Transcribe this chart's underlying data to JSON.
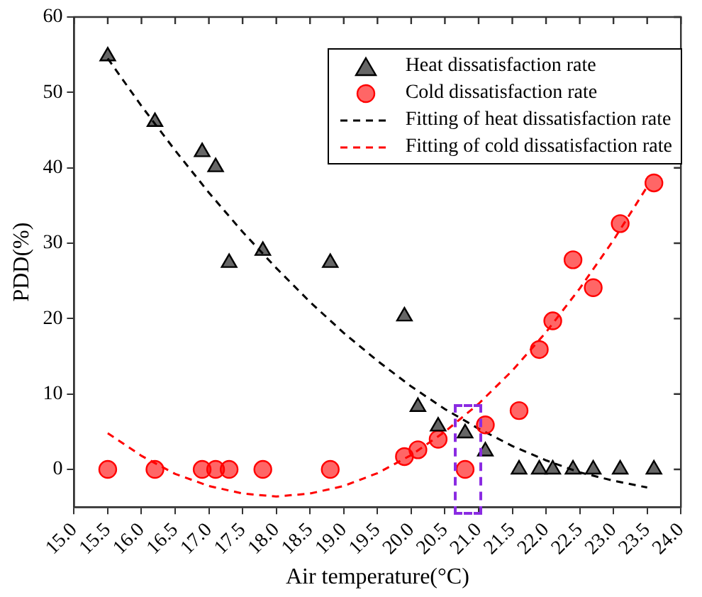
{
  "chart_data": {
    "type": "scatter",
    "xlabel": "Air temperature(°C)",
    "ylabel": "PDD(%)",
    "xlim": [
      15,
      24
    ],
    "ylim": [
      -5,
      60
    ],
    "xticks": [
      {
        "value": 15,
        "label": "15.0"
      },
      {
        "value": 15.5,
        "label": "15.5"
      },
      {
        "value": 16,
        "label": "16.0"
      },
      {
        "value": 16.5,
        "label": "16.5"
      },
      {
        "value": 17,
        "label": "17.0"
      },
      {
        "value": 17.5,
        "label": "17.5"
      },
      {
        "value": 18,
        "label": "18.0"
      },
      {
        "value": 18.5,
        "label": "18.5"
      },
      {
        "value": 19,
        "label": "19.0"
      },
      {
        "value": 19.5,
        "label": "19.5"
      },
      {
        "value": 20,
        "label": "20.0"
      },
      {
        "value": 20.5,
        "label": "20.5"
      },
      {
        "value": 21,
        "label": "21.0"
      },
      {
        "value": 21.5,
        "label": "21.5"
      },
      {
        "value": 22,
        "label": "22.0"
      },
      {
        "value": 22.5,
        "label": "22.5"
      },
      {
        "value": 23,
        "label": "23.0"
      },
      {
        "value": 23.5,
        "label": "23.5"
      },
      {
        "value": 24,
        "label": "24.0"
      }
    ],
    "yticks": [
      0,
      10,
      20,
      30,
      40,
      50,
      60
    ],
    "legend": "top right",
    "grid": false,
    "series": [
      {
        "name": "Heat dissatisfaction rate",
        "type": "scatter",
        "marker": "triangle",
        "color": "#000000",
        "x": [
          15.5,
          16.2,
          16.9,
          17.1,
          17.3,
          17.8,
          18.8,
          19.9,
          20.1,
          20.4,
          20.8,
          21.1,
          21.6,
          21.9,
          22.1,
          22.4,
          22.7,
          23.1,
          23.6
        ],
        "values": [
          54.8,
          46.1,
          42.1,
          40.1,
          27.4,
          29,
          27.4,
          20.3,
          8.3,
          5.7,
          4.8,
          2.4,
          0,
          0,
          0,
          0,
          0,
          0,
          0
        ]
      },
      {
        "name": "Cold dissatisfaction rate",
        "type": "scatter",
        "marker": "circle",
        "color": "#ff0000",
        "x": [
          15.5,
          16.2,
          16.9,
          17.1,
          17.3,
          17.8,
          18.8,
          19.9,
          20.1,
          20.4,
          20.8,
          21.1,
          21.6,
          21.9,
          22.1,
          22.4,
          22.7,
          23.1,
          23.6
        ],
        "values": [
          0,
          0,
          0,
          0,
          0,
          0,
          0,
          1.7,
          2.6,
          4,
          0,
          5.9,
          7.8,
          15.9,
          19.7,
          27.8,
          24.1,
          32.6,
          38
        ]
      },
      {
        "name": "Fitting of heat dissatisfaction rate",
        "type": "line",
        "marker": "none",
        "line_style": "dashed",
        "color": "#000000",
        "x": [
          15.5,
          16,
          16.5,
          17,
          17.5,
          18,
          18.5,
          19,
          19.5,
          20,
          20.5,
          21,
          21.5,
          22,
          22.5,
          23,
          23.5
        ],
        "values": [
          54.5,
          48.2,
          42.3,
          36.7,
          31.5,
          26.7,
          22.2,
          18.1,
          14.4,
          11,
          8,
          5.4,
          3.1,
          1.2,
          -0.4,
          -1.5,
          -2.4
        ]
      },
      {
        "name": "Fitting of cold dissatisfaction rate",
        "type": "line",
        "marker": "none",
        "line_style": "dashed",
        "color": "#ff0000",
        "x": [
          15.5,
          16,
          16.5,
          17,
          17.5,
          18,
          18.5,
          19,
          19.5,
          20,
          20.5,
          21,
          21.5,
          22,
          22.5,
          23,
          23.5
        ],
        "values": [
          4.8,
          1.8,
          -0.6,
          -2.2,
          -3.2,
          -3.6,
          -3.2,
          -2.2,
          -0.5,
          1.9,
          5,
          8.7,
          13.1,
          18.2,
          24,
          30.4,
          37.5
        ]
      }
    ]
  }
}
